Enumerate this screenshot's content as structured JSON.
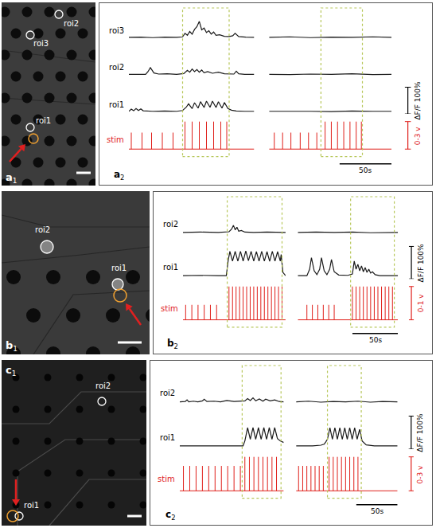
{
  "chart_data": [
    {
      "type": "line",
      "label": "a",
      "sub": "2",
      "rows": [
        "roi3",
        "roi2",
        "roi1"
      ],
      "trace_color": "#1a1a1a",
      "stim_label": "stim",
      "stim_color": "#e0201b",
      "window_color": "#b7c75a",
      "ylim": [
        -10,
        110
      ],
      "stim_ylim": [
        -0.2,
        3.3
      ],
      "stim_baseline": 0,
      "tick_labels": false,
      "scale_bars": {
        "dff": {
          "value": 100,
          "label": "ΔF/F 100%"
        },
        "stim": {
          "value": 3,
          "label": "0-3 v"
        },
        "time": {
          "value": 50,
          "label": "50s"
        }
      },
      "conditions": [
        {
          "xlim": [
            0,
            105
          ],
          "stim_window": [
            45,
            84
          ],
          "series": [
            {
              "x": [
                0,
                10,
                20,
                30,
                40,
                45,
                47,
                49,
                51,
                53,
                55,
                57,
                59,
                61,
                63,
                65,
                67,
                69,
                71,
                73,
                76,
                80,
                84,
                87,
                89,
                92,
                98,
                105
              ],
              "values": [
                0,
                1,
                -1,
                1,
                0,
                2,
                15,
                8,
                22,
                12,
                30,
                40,
                60,
                28,
                35,
                18,
                25,
                12,
                20,
                8,
                10,
                4,
                3,
                6,
                15,
                3,
                1,
                0
              ]
            },
            {
              "x": [
                0,
                8,
                14,
                16,
                18,
                21,
                25,
                32,
                40,
                46,
                49,
                51,
                53,
                55,
                57,
                59,
                61,
                63,
                66,
                70,
                75,
                80,
                88,
                90,
                92,
                97,
                105
              ],
              "values": [
                0,
                1,
                0,
                10,
                25,
                5,
                1,
                2,
                0,
                3,
                15,
                8,
                20,
                10,
                18,
                8,
                16,
                6,
                10,
                4,
                8,
                2,
                1,
                12,
                2,
                0,
                0
              ]
            },
            {
              "x": [
                0,
                2,
                4,
                6,
                8,
                10,
                12,
                15,
                20,
                30,
                40,
                45,
                48,
                50,
                53,
                55,
                58,
                60,
                63,
                65,
                68,
                70,
                73,
                75,
                78,
                80,
                83,
                86,
                90,
                97,
                105
              ],
              "values": [
                0,
                8,
                2,
                10,
                3,
                9,
                2,
                1,
                0,
                1,
                0,
                3,
                15,
                28,
                10,
                32,
                12,
                36,
                14,
                38,
                15,
                38,
                14,
                36,
                12,
                33,
                10,
                4,
                1,
                0,
                0
              ]
            }
          ],
          "stim": {
            "times": [
              2,
              11,
              19,
              28,
              37,
              47,
              53,
              59,
              65,
              71,
              77,
              82
            ],
            "amplitudes": [
              1.8,
              1.8,
              1.8,
              1.8,
              1.8,
              3,
              3,
              3,
              3,
              3,
              3,
              3
            ]
          }
        },
        {
          "xlim": [
            0,
            118
          ],
          "stim_window": [
            50,
            90
          ],
          "series": [
            {
              "x": [
                0,
                20,
                40,
                60,
                80,
                100,
                118
              ],
              "values": [
                0,
                2,
                -1,
                1,
                0,
                2,
                0
              ]
            },
            {
              "x": [
                0,
                20,
                40,
                60,
                80,
                100,
                118
              ],
              "values": [
                0,
                -1,
                1,
                0,
                2,
                -1,
                0
              ]
            },
            {
              "x": [
                0,
                20,
                40,
                60,
                80,
                100,
                118
              ],
              "values": [
                0,
                1,
                0,
                -1,
                1,
                0,
                0
              ]
            }
          ],
          "stim": {
            "times": [
              5,
              13,
              21,
              30,
              38,
              46,
              54,
              60,
              66,
              72,
              78,
              84,
              89
            ],
            "amplitudes": [
              1.8,
              1.8,
              1.8,
              1.8,
              1.8,
              1.8,
              3,
              3,
              3,
              3,
              3,
              3,
              3
            ]
          }
        }
      ]
    },
    {
      "type": "line",
      "label": "b",
      "sub": "2",
      "rows": [
        "roi2",
        "roi1"
      ],
      "trace_color": "#1a1a1a",
      "stim_label": "stim",
      "stim_color": "#e0201b",
      "window_color": "#b7c75a",
      "ylim": [
        -10,
        110
      ],
      "stim_ylim": [
        -0.07,
        1.1
      ],
      "stim_baseline": 0,
      "tick_labels": false,
      "scale_bars": {
        "dff": {
          "value": 100,
          "label": "ΔF/F 100%"
        },
        "stim": {
          "value": 1,
          "label": "0-1 v"
        },
        "time": {
          "value": 50,
          "label": "50s"
        }
      },
      "conditions": [
        {
          "xlim": [
            0,
            116
          ],
          "stim_window": [
            50,
            112
          ],
          "series": [
            {
              "x": [
                0,
                20,
                40,
                52,
                55,
                57,
                59,
                61,
                63,
                66,
                70,
                80,
                95,
                116
              ],
              "values": [
                0,
                1,
                0,
                2,
                10,
                22,
                8,
                16,
                4,
                6,
                1,
                0,
                1,
                0
              ]
            },
            {
              "x": [
                0,
                20,
                40,
                49,
                51,
                53,
                56,
                59,
                62,
                65,
                68,
                71,
                74,
                77,
                80,
                83,
                86,
                89,
                92,
                95,
                98,
                101,
                104,
                107,
                110,
                111,
                113,
                116
              ],
              "values": [
                0,
                1,
                0,
                0,
                45,
                75,
                45,
                75,
                45,
                75,
                45,
                76,
                46,
                75,
                45,
                74,
                45,
                75,
                45,
                74,
                44,
                75,
                45,
                74,
                45,
                65,
                10,
                0
              ]
            }
          ],
          "stim": {
            "times": [
              3,
              10,
              17,
              24,
              31,
              38,
              52,
              56,
              60,
              64,
              68,
              72,
              76,
              80,
              84,
              88,
              92,
              96,
              100,
              104,
              108,
              112
            ],
            "amplitudes": [
              0.45,
              0.45,
              0.45,
              0.45,
              0.45,
              0.45,
              1,
              1,
              1,
              1,
              1,
              1,
              1,
              1,
              1,
              1,
              1,
              1,
              1,
              1,
              1,
              1
            ]
          }
        },
        {
          "xlim": [
            0,
            110
          ],
          "stim_window": [
            58,
            106
          ],
          "series": [
            {
              "x": [
                0,
                20,
                40,
                60,
                80,
                100,
                110
              ],
              "values": [
                0,
                1,
                0,
                1,
                -1,
                0,
                0
              ]
            },
            {
              "x": [
                0,
                10,
                13,
                15,
                18,
                21,
                24,
                26,
                29,
                32,
                35,
                37,
                40,
                45,
                55,
                60,
                62,
                64,
                66,
                68,
                70,
                72,
                74,
                76,
                78,
                80,
                82,
                85,
                90,
                110
              ],
              "values": [
                0,
                0,
                20,
                55,
                15,
                3,
                20,
                55,
                15,
                3,
                20,
                50,
                12,
                2,
                1,
                5,
                45,
                20,
                35,
                15,
                30,
                12,
                25,
                10,
                20,
                8,
                12,
                3,
                0,
                0
              ]
            }
          ],
          "stim": {
            "times": [
              10,
              16,
              22,
              28,
              34,
              40,
              60,
              64,
              68,
              72,
              76,
              80,
              84,
              88,
              92,
              96,
              100,
              104
            ],
            "amplitudes": [
              0.45,
              0.45,
              0.45,
              0.45,
              0.45,
              0.45,
              1,
              1,
              1,
              1,
              1,
              1,
              1,
              1,
              1,
              1,
              1,
              1
            ]
          }
        }
      ]
    },
    {
      "type": "line",
      "label": "c",
      "sub": "2",
      "rows": [
        "roi2",
        "roi1"
      ],
      "trace_color": "#1a1a1a",
      "stim_label": "stim",
      "stim_color": "#e0201b",
      "window_color": "#b7c75a",
      "ylim": [
        -10,
        110
      ],
      "stim_ylim": [
        -0.2,
        3.3
      ],
      "stim_baseline": 0,
      "tick_labels": false,
      "scale_bars": {
        "dff": {
          "value": 100,
          "label": "ΔF/F 100%"
        },
        "stim": {
          "value": 3,
          "label": "0-3 v"
        },
        "time": {
          "value": 50,
          "label": "50s"
        }
      },
      "conditions": [
        {
          "xlim": [
            0,
            115
          ],
          "stim_window": [
            69,
            112
          ],
          "series": [
            {
              "x": [
                0,
                6,
                8,
                10,
                15,
                20,
                25,
                27,
                30,
                38,
                45,
                52,
                60,
                66,
                72,
                75,
                78,
                81,
                84,
                88,
                92,
                95,
                100,
                105,
                110,
                115
              ],
              "values": [
                0,
                1,
                6,
                0,
                2,
                0,
                3,
                8,
                1,
                2,
                0,
                4,
                1,
                2,
                3,
                10,
                4,
                12,
                3,
                9,
                2,
                8,
                3,
                6,
                1,
                0
              ]
            },
            {
              "x": [
                0,
                30,
                60,
                70,
                72,
                75,
                78,
                81,
                84,
                87,
                90,
                93,
                96,
                99,
                102,
                105,
                108,
                111,
                115
              ],
              "values": [
                0,
                0,
                0,
                0,
                15,
                55,
                20,
                55,
                20,
                55,
                20,
                55,
                20,
                55,
                20,
                55,
                22,
                15,
                10
              ]
            }
          ],
          "stim": {
            "times": [
              4,
              11,
              18,
              25,
              32,
              39,
              46,
              53,
              60,
              67,
              72,
              77,
              82,
              87,
              92,
              97,
              102,
              107
            ],
            "amplitudes": [
              2.2,
              2.2,
              2.2,
              2.2,
              2.2,
              2.2,
              2.2,
              2.2,
              2.2,
              2.2,
              3,
              3,
              3,
              3,
              3,
              3,
              3,
              3
            ]
          }
        },
        {
          "xlim": [
            0,
            123
          ],
          "stim_window": [
            38,
            79
          ],
          "series": [
            {
              "x": [
                0,
                15,
                30,
                45,
                60,
                75,
                90,
                105,
                123
              ],
              "values": [
                0,
                2,
                -1,
                1,
                0,
                2,
                -1,
                1,
                0
              ]
            },
            {
              "x": [
                0,
                20,
                30,
                34,
                36,
                38,
                41,
                44,
                47,
                50,
                53,
                56,
                59,
                62,
                65,
                68,
                71,
                74,
                77,
                80,
                85,
                95,
                123
              ],
              "values": [
                0,
                0,
                2,
                5,
                12,
                20,
                55,
                20,
                55,
                20,
                55,
                20,
                55,
                20,
                55,
                20,
                55,
                20,
                50,
                15,
                3,
                0,
                0
              ]
            }
          ],
          "stim": {
            "times": [
              3,
              8,
              13,
              18,
              23,
              28,
              33,
              40,
              45,
              50,
              55,
              60,
              65,
              70,
              75
            ],
            "amplitudes": [
              2.2,
              2.2,
              2.2,
              2.2,
              2.2,
              2.2,
              2.2,
              3,
              3,
              3,
              3,
              3,
              3,
              3,
              3
            ]
          }
        }
      ]
    }
  ],
  "images": [
    {
      "label": "a",
      "sub": "1",
      "rois": [
        "roi1",
        "roi2",
        "roi3"
      ]
    },
    {
      "label": "b",
      "sub": "1",
      "rois": [
        "roi1",
        "roi2"
      ]
    },
    {
      "label": "c",
      "sub": "1",
      "rois": [
        "roi1",
        "roi2"
      ]
    }
  ]
}
